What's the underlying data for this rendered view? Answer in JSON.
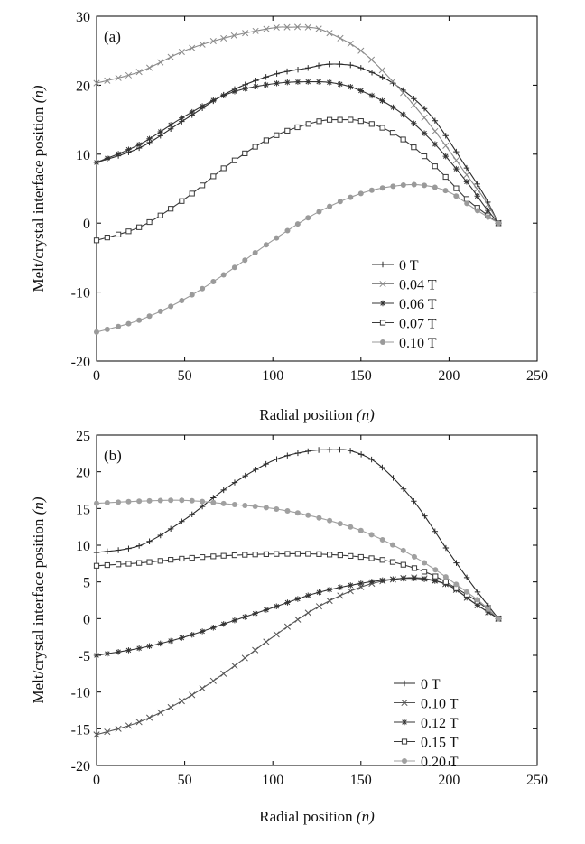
{
  "chart_data": [
    {
      "type": "line",
      "panel_label": "(a)",
      "xlabel": "Radial position",
      "xlabel_unit": "(n)",
      "ylabel": "Melt/crystal interface position",
      "ylabel_unit": "(n)",
      "xlim": [
        0,
        250
      ],
      "ylim": [
        -20,
        30
      ],
      "xticks": [
        0,
        50,
        100,
        150,
        200,
        250
      ],
      "yticks": [
        -20,
        -10,
        0,
        10,
        20,
        30
      ],
      "grid": false,
      "legend_position": "bottom-right",
      "series": [
        {
          "name": "0 T",
          "marker": "plus",
          "color": "#2a2a2a",
          "x": [
            0,
            25,
            50,
            75,
            100,
            120,
            130,
            140,
            150,
            170,
            190,
            210,
            220,
            228
          ],
          "y": [
            8.8,
            11,
            15,
            19,
            21.5,
            22.5,
            23,
            23,
            22.5,
            20,
            15.5,
            8,
            4,
            0
          ]
        },
        {
          "name": "0.04 T",
          "marker": "x",
          "color": "#8a8a8a",
          "x": [
            0,
            25,
            50,
            75,
            100,
            110,
            120,
            130,
            150,
            170,
            190,
            210,
            220,
            228
          ],
          "y": [
            20.3,
            22,
            25,
            27,
            28.3,
            28.4,
            28.4,
            27.8,
            25,
            20,
            14,
            7,
            3.5,
            0
          ]
        },
        {
          "name": "0.06 T",
          "marker": "asterisk",
          "color": "#333333",
          "x": [
            0,
            25,
            50,
            75,
            100,
            120,
            135,
            150,
            170,
            190,
            210,
            220,
            228
          ],
          "y": [
            8.8,
            11.5,
            15.5,
            18.8,
            20.2,
            20.5,
            20.3,
            19.2,
            16.5,
            12,
            6,
            2.5,
            0
          ]
        },
        {
          "name": "0.07 T",
          "marker": "square",
          "color": "#3a3a3a",
          "x": [
            0,
            25,
            50,
            75,
            100,
            125,
            140,
            150,
            165,
            180,
            195,
            210,
            220,
            228
          ],
          "y": [
            -2.5,
            -0.5,
            3.5,
            8.5,
            12.5,
            14.7,
            15,
            14.8,
            13.5,
            11,
            7.5,
            3.5,
            1.5,
            0
          ]
        },
        {
          "name": "0.10 T",
          "marker": "dot",
          "color": "#9a9a9a",
          "x": [
            0,
            25,
            50,
            75,
            100,
            125,
            150,
            170,
            185,
            200,
            215,
            228
          ],
          "y": [
            -15.8,
            -14,
            -11,
            -7,
            -2.5,
            1.5,
            4.3,
            5.4,
            5.5,
            4.5,
            2,
            0
          ]
        }
      ]
    },
    {
      "type": "line",
      "panel_label": "(b)",
      "xlabel": "Radial position",
      "xlabel_unit": "(n)",
      "ylabel": "Melt/crystal interface position",
      "ylabel_unit": "(n)",
      "xlim": [
        0,
        250
      ],
      "ylim": [
        -20,
        25
      ],
      "xticks": [
        0,
        50,
        100,
        150,
        200,
        250
      ],
      "yticks": [
        -20,
        -15,
        -10,
        -5,
        0,
        5,
        10,
        15,
        20,
        25
      ],
      "grid": false,
      "legend_position": "bottom-right",
      "series": [
        {
          "name": "0 T",
          "marker": "plus",
          "color": "#2a2a2a",
          "x": [
            0,
            25,
            50,
            75,
            100,
            120,
            135,
            145,
            160,
            180,
            200,
            215,
            228
          ],
          "y": [
            9,
            10,
            13.5,
            18,
            21.5,
            22.8,
            23,
            22.8,
            21,
            16,
            9,
            4,
            0
          ]
        },
        {
          "name": "0.10 T",
          "marker": "x",
          "color": "#555555",
          "x": [
            0,
            25,
            50,
            75,
            100,
            125,
            150,
            170,
            185,
            200,
            215,
            228
          ],
          "y": [
            -15.8,
            -14,
            -11,
            -7,
            -2.5,
            1.5,
            4.3,
            5.4,
            5.5,
            4.5,
            2,
            0
          ]
        },
        {
          "name": "0.12 T",
          "marker": "asterisk",
          "color": "#333333",
          "x": [
            0,
            25,
            50,
            75,
            100,
            125,
            150,
            170,
            185,
            200,
            215,
            228
          ],
          "y": [
            -5,
            -4,
            -2.5,
            -0.5,
            1.5,
            3.5,
            4.8,
            5.4,
            5.4,
            4.5,
            2,
            0
          ]
        },
        {
          "name": "0.15 T",
          "marker": "square",
          "color": "#3a3a3a",
          "x": [
            0,
            25,
            50,
            75,
            100,
            125,
            150,
            170,
            190,
            205,
            218,
            228
          ],
          "y": [
            7.2,
            7.6,
            8.2,
            8.6,
            8.8,
            8.8,
            8.4,
            7.6,
            6,
            4,
            2,
            0
          ]
        },
        {
          "name": "0.20 T",
          "marker": "dot",
          "color": "#a0a0a0",
          "x": [
            0,
            25,
            50,
            75,
            100,
            125,
            150,
            170,
            190,
            205,
            218,
            228
          ],
          "y": [
            15.7,
            16,
            16.1,
            15.6,
            15,
            13.8,
            12,
            9.8,
            7,
            4.5,
            2.2,
            0
          ]
        }
      ]
    }
  ]
}
